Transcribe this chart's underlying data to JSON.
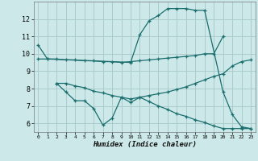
{
  "bg_color": "#cce8e8",
  "grid_color": "#aacccc",
  "line_color": "#1a6e6e",
  "marker": "+",
  "line1_x": [
    0,
    1,
    10,
    11,
    12,
    13,
    14,
    15,
    16,
    17,
    18,
    20,
    21,
    22,
    23
  ],
  "line1_y": [
    10.5,
    9.7,
    9.5,
    11.1,
    11.9,
    12.2,
    12.6,
    12.6,
    12.6,
    12.5,
    12.5,
    7.8,
    6.5,
    5.8,
    5.7
  ],
  "line2_x": [
    0,
    1,
    2,
    3,
    4,
    5,
    6,
    7,
    8,
    9,
    10,
    11,
    12,
    13,
    14,
    15,
    16,
    17,
    18,
    19,
    20
  ],
  "line2_y": [
    9.7,
    9.7,
    9.7,
    9.65,
    9.65,
    9.6,
    9.6,
    9.55,
    9.55,
    9.5,
    9.55,
    9.6,
    9.65,
    9.7,
    9.75,
    9.8,
    9.85,
    9.9,
    10.0,
    10.0,
    11.0
  ],
  "line3_x": [
    2,
    3,
    4,
    5,
    6,
    7,
    8,
    9,
    10,
    11,
    12,
    13,
    14,
    15,
    16,
    17,
    18,
    19,
    20,
    21,
    22,
    23
  ],
  "line3_y": [
    8.3,
    8.3,
    8.15,
    8.05,
    7.85,
    7.75,
    7.6,
    7.5,
    7.4,
    7.5,
    7.6,
    7.7,
    7.8,
    7.95,
    8.1,
    8.3,
    8.5,
    8.7,
    8.85,
    9.3,
    9.55,
    9.65
  ],
  "line4_x": [
    2,
    3,
    4,
    5,
    6,
    7,
    8,
    9,
    10,
    11,
    12,
    13,
    14,
    15,
    16,
    17,
    18,
    19,
    20,
    21,
    22,
    23
  ],
  "line4_y": [
    8.3,
    7.8,
    7.3,
    7.3,
    6.85,
    5.9,
    6.3,
    7.5,
    7.2,
    7.5,
    7.25,
    7.0,
    6.8,
    6.55,
    6.4,
    6.2,
    6.05,
    5.85,
    5.7,
    5.7,
    5.7,
    5.7
  ],
  "xlabel": "Humidex (Indice chaleur)",
  "xlim": [
    -0.5,
    23.5
  ],
  "ylim": [
    5.5,
    13.0
  ],
  "yticks": [
    6,
    7,
    8,
    9,
    10,
    11,
    12
  ],
  "xticks": [
    0,
    1,
    2,
    3,
    4,
    5,
    6,
    7,
    8,
    9,
    10,
    11,
    12,
    13,
    14,
    15,
    16,
    17,
    18,
    19,
    20,
    21,
    22,
    23
  ]
}
